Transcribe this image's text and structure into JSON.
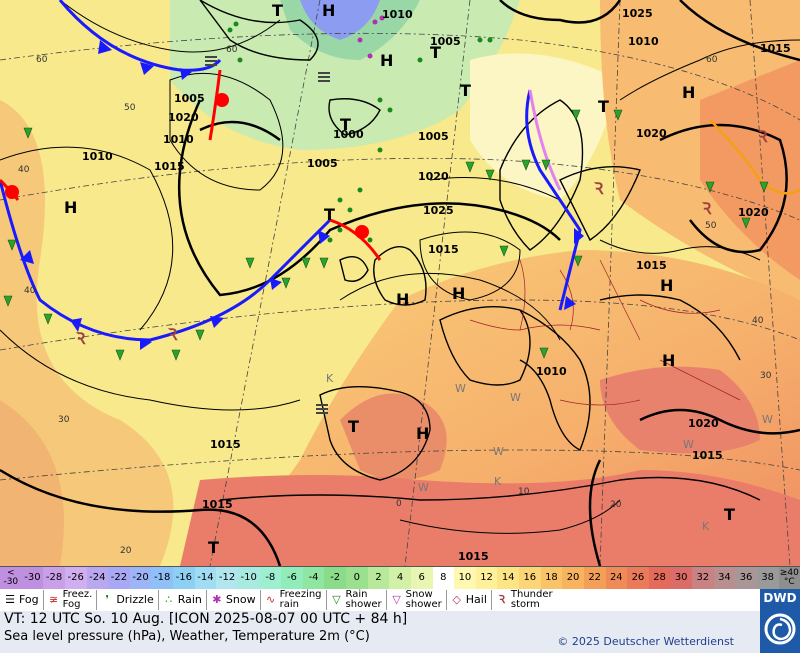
{
  "map": {
    "pressure_labels": [
      "1010",
      "1005",
      "1025",
      "1010",
      "1005",
      "1015",
      "1020",
      "1005",
      "1010",
      "1000",
      "1005",
      "1010",
      "1015",
      "1020",
      "1025",
      "1015",
      "1020",
      "1020",
      "1015",
      "1010",
      "1020",
      "1015",
      "1015"
    ],
    "system_labels": [
      "H",
      "T",
      "T",
      "H",
      "T",
      "T",
      "H",
      "T",
      "H",
      "H",
      "H",
      "H",
      "T",
      "H",
      "T",
      "T",
      "H",
      "T"
    ],
    "graticule_labels": [
      "60",
      "50",
      "60",
      "40",
      "40",
      "30",
      "20",
      "0",
      "10",
      "20",
      "30",
      "40",
      "50",
      "60"
    ],
    "weather_w_labels": [
      "W",
      "W",
      "W",
      "W",
      "W",
      "W",
      "K",
      "K",
      "K"
    ],
    "colors": {
      "sea_yellow": "#f4ef9a",
      "warm_orange": "#f7b971",
      "hot_red": "#e9776f",
      "cool_green": "#bfe8b4",
      "cold_front": "#1a1aff",
      "warm_front": "#ff0000",
      "occluded": "#e282f0",
      "isobar": "#000000"
    }
  },
  "scale": {
    "first_top": "<",
    "first_bottom": "-30",
    "values": [
      "-30",
      "-28",
      "-26",
      "-24",
      "-22",
      "-20",
      "-18",
      "-16",
      "-14",
      "-12",
      "-10",
      "-8",
      "-6",
      "-4",
      "-2",
      "0",
      "2",
      "4",
      "6",
      "8",
      "10",
      "12",
      "14",
      "16",
      "18",
      "20",
      "22",
      "24",
      "26",
      "28",
      "30",
      "32",
      "34",
      "36",
      "38"
    ],
    "last_top": "≥40",
    "last_bottom": "°C",
    "colors": [
      "#c090e0",
      "#c9a0e8",
      "#d0aef0",
      "#b9a7ef",
      "#a8a8f5",
      "#9db5f7",
      "#8fc0f7",
      "#8ed0f4",
      "#a0dcf2",
      "#b2e6ef",
      "#a8eadf",
      "#9eeed0",
      "#90ecb8",
      "#8ee6a0",
      "#8adc8a",
      "#9ae08e",
      "#b8e89a",
      "#d2f0a6",
      "#e8f6b2",
      "#ffffff",
      "#fff8b0",
      "#fff09a",
      "#fde586",
      "#fbd576",
      "#f9c468",
      "#f7b35e",
      "#f39f58",
      "#ef8b56",
      "#eb7a58",
      "#e56a5c",
      "#dc6c68",
      "#c98282",
      "#b98e8e",
      "#a99797",
      "#9a9a9a",
      "#8e8e8e"
    ]
  },
  "legend": {
    "items": [
      {
        "icon": "fog-icon",
        "label": "Fog"
      },
      {
        "icon": "freezing-fog-icon",
        "label": "Freez.\nFog"
      },
      {
        "icon": "drizzle-icon",
        "label": "Drizzle"
      },
      {
        "icon": "rain-icon",
        "label": "Rain"
      },
      {
        "icon": "snow-icon",
        "label": "Snow"
      },
      {
        "icon": "freezing-rain-icon",
        "label": "Freezing\nrain"
      },
      {
        "icon": "rain-shower-icon",
        "label": "Rain\nshower"
      },
      {
        "icon": "snow-shower-icon",
        "label": "Snow\nshower"
      },
      {
        "icon": "hail-icon",
        "label": "Hail"
      },
      {
        "icon": "thunderstorm-icon",
        "label": "Thunder\nstorm"
      }
    ]
  },
  "footer": {
    "vt": "VT: 12 UTC So.  10 Aug. [ICON 2025-08-07  00 UTC + 84 h]",
    "description": "Sea level pressure (hPa), Weather, Temperature 2m (°C)",
    "copyright": "© 2025 Deutscher Wetterdienst",
    "logo_text": "DWD"
  }
}
